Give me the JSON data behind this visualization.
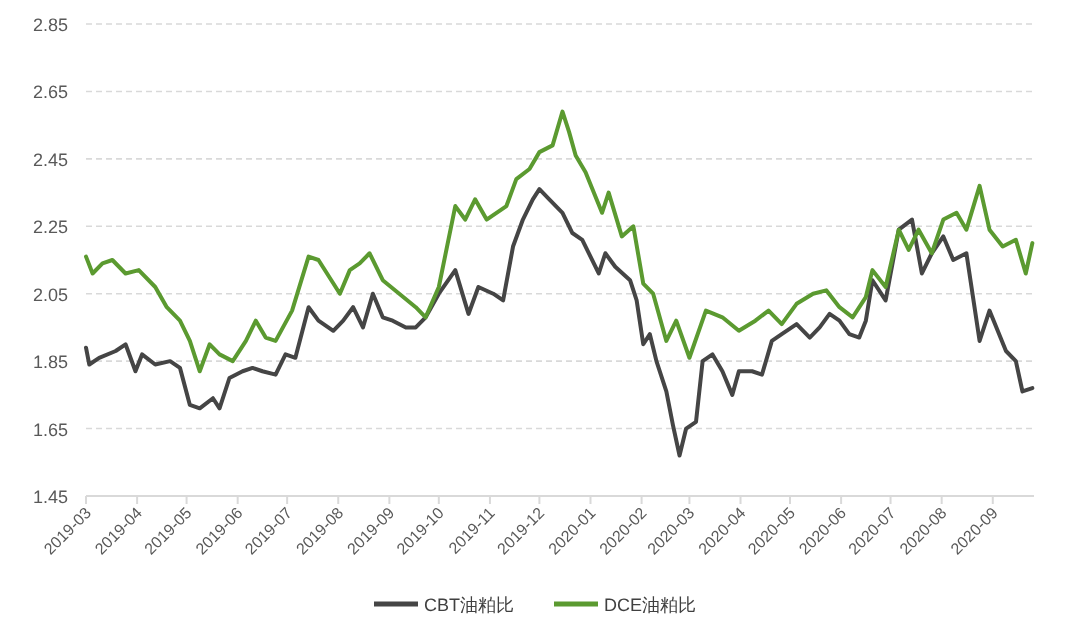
{
  "chart_data": {
    "type": "line",
    "series": [
      {
        "name": "CBT油粕比",
        "color": "#454545",
        "x": [
          "2019-03-01",
          "2019-03-03",
          "2019-03-09",
          "2019-03-19",
          "2019-03-25",
          "2019-03-31",
          "2019-04-04",
          "2019-04-12",
          "2019-04-21",
          "2019-04-27",
          "2019-05-03",
          "2019-05-09",
          "2019-05-17",
          "2019-05-21",
          "2019-05-27",
          "2019-06-04",
          "2019-06-10",
          "2019-06-16",
          "2019-06-24",
          "2019-06-30",
          "2019-07-06",
          "2019-07-14",
          "2019-07-20",
          "2019-07-29",
          "2019-08-04",
          "2019-08-10",
          "2019-08-16",
          "2019-08-22",
          "2019-08-28",
          "2019-09-03",
          "2019-09-11",
          "2019-09-17",
          "2019-09-23",
          "2019-10-01",
          "2019-10-11",
          "2019-10-19",
          "2019-10-25",
          "2019-11-03",
          "2019-11-09",
          "2019-11-15",
          "2019-11-21",
          "2019-11-27",
          "2019-12-01",
          "2019-12-07",
          "2019-12-15",
          "2019-12-21",
          "2019-12-27",
          "2020-01-06",
          "2020-01-10",
          "2020-01-16",
          "2020-01-25",
          "2020-01-29",
          "2020-02-02",
          "2020-02-06",
          "2020-02-10",
          "2020-02-16",
          "2020-02-20",
          "2020-02-24",
          "2020-02-28",
          "2020-03-05",
          "2020-03-09",
          "2020-03-15",
          "2020-03-21",
          "2020-03-27",
          "2020-03-31",
          "2020-04-08",
          "2020-04-14",
          "2020-04-20",
          "2020-04-26",
          "2020-05-05",
          "2020-05-13",
          "2020-05-19",
          "2020-05-25",
          "2020-05-31",
          "2020-06-06",
          "2020-06-12",
          "2020-06-16",
          "2020-06-20",
          "2020-06-28",
          "2020-07-06",
          "2020-07-14",
          "2020-07-20",
          "2020-07-26",
          "2020-08-02",
          "2020-08-08",
          "2020-08-16",
          "2020-08-24",
          "2020-08-30",
          "2020-09-09",
          "2020-09-15",
          "2020-09-19",
          "2020-09-25"
        ],
        "values": [
          1.89,
          1.84,
          1.86,
          1.88,
          1.9,
          1.82,
          1.87,
          1.84,
          1.85,
          1.83,
          1.72,
          1.71,
          1.74,
          1.71,
          1.8,
          1.82,
          1.83,
          1.82,
          1.81,
          1.87,
          1.86,
          2.01,
          1.97,
          1.94,
          1.97,
          2.01,
          1.95,
          2.05,
          1.98,
          1.97,
          1.95,
          1.95,
          1.98,
          2.05,
          2.12,
          1.99,
          2.07,
          2.05,
          2.03,
          2.19,
          2.27,
          2.33,
          2.36,
          2.33,
          2.29,
          2.23,
          2.21,
          2.11,
          2.17,
          2.13,
          2.09,
          2.03,
          1.9,
          1.93,
          1.85,
          1.76,
          1.66,
          1.57,
          1.65,
          1.67,
          1.85,
          1.87,
          1.82,
          1.75,
          1.82,
          1.82,
          1.81,
          1.91,
          1.93,
          1.96,
          1.92,
          1.95,
          1.99,
          1.97,
          1.93,
          1.92,
          1.97,
          2.09,
          2.03,
          2.24,
          2.27,
          2.11,
          2.17,
          2.22,
          2.15,
          2.17,
          1.91,
          2.0,
          1.88,
          1.85,
          1.76,
          1.77
        ]
      },
      {
        "name": "DCE油粕比",
        "color": "#5b9a30",
        "x": [
          "2019-03-01",
          "2019-03-05",
          "2019-03-11",
          "2019-03-17",
          "2019-03-25",
          "2019-04-02",
          "2019-04-12",
          "2019-04-19",
          "2019-04-27",
          "2019-05-03",
          "2019-05-09",
          "2019-05-15",
          "2019-05-21",
          "2019-05-29",
          "2019-06-06",
          "2019-06-12",
          "2019-06-18",
          "2019-06-24",
          "2019-07-04",
          "2019-07-14",
          "2019-07-20",
          "2019-08-02",
          "2019-08-08",
          "2019-08-14",
          "2019-08-20",
          "2019-08-28",
          "2019-09-07",
          "2019-09-17",
          "2019-09-23",
          "2019-10-01",
          "2019-10-11",
          "2019-10-17",
          "2019-10-23",
          "2019-10-30",
          "2019-11-11",
          "2019-11-17",
          "2019-11-25",
          "2019-12-01",
          "2019-12-09",
          "2019-12-15",
          "2019-12-19",
          "2019-12-23",
          "2019-12-29",
          "2020-01-08",
          "2020-01-12",
          "2020-01-20",
          "2020-01-27",
          "2020-02-02",
          "2020-02-08",
          "2020-02-16",
          "2020-02-22",
          "2020-03-01",
          "2020-03-11",
          "2020-03-21",
          "2020-03-31",
          "2020-04-10",
          "2020-04-18",
          "2020-04-26",
          "2020-05-05",
          "2020-05-15",
          "2020-05-23",
          "2020-05-31",
          "2020-06-08",
          "2020-06-16",
          "2020-06-20",
          "2020-06-28",
          "2020-07-06",
          "2020-07-12",
          "2020-07-18",
          "2020-07-26",
          "2020-08-02",
          "2020-08-10",
          "2020-08-16",
          "2020-08-24",
          "2020-08-30",
          "2020-09-07",
          "2020-09-15",
          "2020-09-21",
          "2020-09-25"
        ],
        "values": [
          2.16,
          2.11,
          2.14,
          2.15,
          2.11,
          2.12,
          2.07,
          2.01,
          1.97,
          1.91,
          1.82,
          1.9,
          1.87,
          1.85,
          1.91,
          1.97,
          1.92,
          1.91,
          2.0,
          2.16,
          2.15,
          2.05,
          2.12,
          2.14,
          2.17,
          2.09,
          2.05,
          2.01,
          1.98,
          2.07,
          2.31,
          2.27,
          2.33,
          2.27,
          2.31,
          2.39,
          2.42,
          2.47,
          2.49,
          2.59,
          2.53,
          2.46,
          2.41,
          2.29,
          2.35,
          2.22,
          2.25,
          2.08,
          2.05,
          1.91,
          1.97,
          1.86,
          2.0,
          1.98,
          1.94,
          1.97,
          2.0,
          1.96,
          2.02,
          2.05,
          2.06,
          2.01,
          1.98,
          2.04,
          2.12,
          2.07,
          2.24,
          2.18,
          2.24,
          2.17,
          2.27,
          2.29,
          2.24,
          2.37,
          2.24,
          2.19,
          2.21,
          2.11,
          2.2
        ]
      }
    ],
    "xlim": [
      "2019-03-01",
      "2020-09-26"
    ],
    "xticks": [
      "2019-03",
      "2019-04",
      "2019-05",
      "2019-06",
      "2019-07",
      "2019-08",
      "2019-09",
      "2019-10",
      "2019-11",
      "2019-12",
      "2020-01",
      "2020-02",
      "2020-03",
      "2020-04",
      "2020-05",
      "2020-06",
      "2020-07",
      "2020-08",
      "2020-09"
    ],
    "ylim": [
      1.45,
      2.85
    ],
    "yticks": [
      1.45,
      1.65,
      1.85,
      2.05,
      2.25,
      2.45,
      2.65,
      2.85
    ],
    "grid": "y",
    "legend": "bottom",
    "marker": "none",
    "line_style": "solid"
  }
}
